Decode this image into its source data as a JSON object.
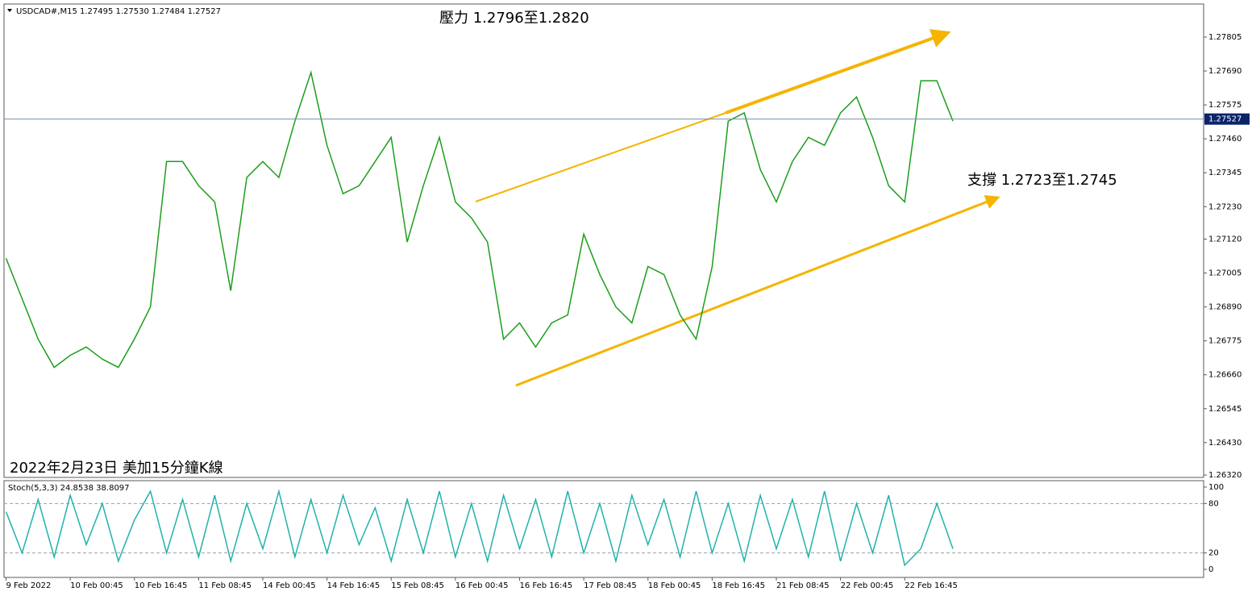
{
  "chart_data": [
    {
      "type": "line",
      "title": "USDCAD#,M15 1.27495 1.27530 1.27484 1.27527",
      "annotations": [
        "壓力 1.2796至1.2820",
        "支撐 1.2723至1.2745",
        "2022年2月23日 美加15分鐘K線"
      ],
      "last_price": 1.27527,
      "xlim": [
        -2,
        1194
      ],
      "ylim": [
        1.26312,
        1.27917
      ],
      "yticks": [
        1.27805,
        {
          "value": 1.2769,
          "label": "1.27690"
        },
        1.27575,
        {
          "value": 1.2746,
          "label": "1.27460"
        },
        1.27345,
        {
          "value": 1.2723,
          "label": "1.27230"
        },
        {
          "value": 1.2712,
          "label": "1.27120"
        },
        {
          "value": 1.27005,
          "label": "1.27005"
        },
        {
          "value": 1.2689,
          "label": "1.26890"
        },
        1.26775,
        {
          "value": 1.2666,
          "label": "1.26660"
        },
        1.26545,
        {
          "value": 1.2643,
          "label": "1.26430"
        },
        {
          "value": 1.2632,
          "label": "1.26320"
        }
      ],
      "series": [
        {
          "color": "#1c9e1c",
          "x": [
            0,
            16,
            32,
            48,
            64,
            80,
            96,
            112,
            128,
            144,
            160,
            176,
            192,
            208,
            224,
            240,
            256,
            272,
            288,
            304,
            320,
            336,
            352,
            368,
            384,
            400,
            416,
            432,
            448,
            464,
            480,
            496,
            512,
            528,
            544,
            560,
            576,
            592,
            608,
            624,
            640,
            656,
            672,
            688,
            704,
            720,
            736,
            752,
            768,
            784,
            800,
            816,
            832,
            848,
            864,
            880,
            896,
            912,
            928,
            944
          ],
          "values": [
            1.27055,
            1.26918,
            1.26781,
            1.26685,
            1.26726,
            1.26754,
            1.26713,
            1.26685,
            1.26781,
            1.2689,
            1.27383,
            1.27383,
            1.27301,
            1.27246,
            1.26945,
            1.27329,
            1.27383,
            1.27329,
            1.2752,
            1.27685,
            1.27438,
            1.27274,
            1.27301,
            1.27383,
            1.27465,
            1.2711,
            1.27301,
            1.27465,
            1.27246,
            1.27192,
            1.2711,
            1.26781,
            1.26836,
            1.26754,
            1.26836,
            1.26863,
            1.27137,
            1.27,
            1.2689,
            1.26836,
            1.27027,
            1.27,
            1.26863,
            1.26781,
            1.27027,
            1.2752,
            1.27548,
            1.27356,
            1.27246,
            1.27383,
            1.27465,
            1.27438,
            1.27548,
            1.27602,
            1.27465,
            1.27301,
            1.27246,
            1.27657,
            1.27657,
            1.2752
          ]
        }
      ]
    },
    {
      "type": "line",
      "title": "Stoch(5,3,3) 24.8538 38.8097",
      "xlim": [
        -2,
        1194
      ],
      "ylim": [
        -9.8,
        107.8
      ],
      "yticks": [
        0,
        20,
        80,
        100
      ],
      "grid_ticks": [
        20,
        80
      ],
      "xticks": [
        {
          "value": 0,
          "label": "9 Feb 2022"
        },
        {
          "value": 64,
          "label": "10 Feb 00:45"
        },
        {
          "value": 128,
          "label": "10 Feb 16:45"
        },
        {
          "value": 192,
          "label": "11 Feb 08:45"
        },
        {
          "value": 256,
          "label": "14 Feb 00:45"
        },
        {
          "value": 320,
          "label": "14 Feb 16:45"
        },
        {
          "value": 384,
          "label": "15 Feb 08:45"
        },
        {
          "value": 448,
          "label": "16 Feb 00:45"
        },
        {
          "value": 512,
          "label": "16 Feb 16:45"
        },
        {
          "value": 576,
          "label": "17 Feb 08:45"
        },
        {
          "value": 640,
          "label": "18 Feb 00:45"
        },
        {
          "value": 704,
          "label": "18 Feb 16:45"
        },
        {
          "value": 768,
          "label": "21 Feb 08:45"
        },
        {
          "value": 832,
          "label": "22 Feb 00:45"
        },
        {
          "value": 896,
          "label": "22 Feb 16:45"
        }
      ],
      "series": [
        {
          "color": "#20b2aa",
          "x": [
            0,
            16,
            32,
            48,
            64,
            80,
            96,
            112,
            128,
            144,
            160,
            176,
            192,
            208,
            224,
            240,
            256,
            272,
            288,
            304,
            320,
            336,
            352,
            368,
            384,
            400,
            416,
            432,
            448,
            464,
            480,
            496,
            512,
            528,
            544,
            560,
            576,
            592,
            608,
            624,
            640,
            656,
            672,
            688,
            704,
            720,
            736,
            752,
            768,
            784,
            800,
            816,
            832,
            848,
            864,
            880,
            896,
            912,
            928,
            944
          ],
          "values": [
            70,
            20,
            85,
            15,
            90,
            30,
            80,
            10,
            60,
            95,
            20,
            85,
            15,
            90,
            10,
            80,
            25,
            95,
            15,
            85,
            20,
            90,
            30,
            75,
            10,
            85,
            20,
            95,
            15,
            80,
            10,
            90,
            25,
            85,
            15,
            95,
            20,
            80,
            10,
            90,
            30,
            85,
            15,
            95,
            20,
            80,
            10,
            90,
            25,
            85,
            15,
            95,
            10,
            80,
            20,
            90,
            5,
            25,
            80,
            25
          ]
        }
      ]
    }
  ]
}
